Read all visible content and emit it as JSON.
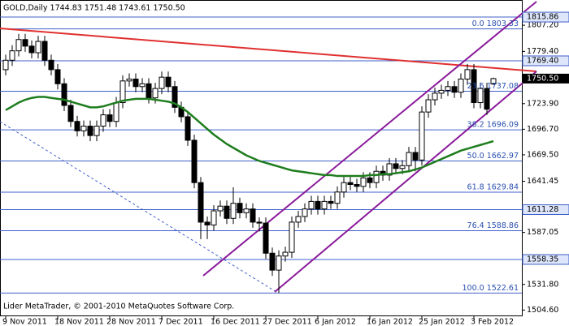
{
  "chart_data": {
    "type": "candlestick",
    "title": "GOLD,Daily  1744.83 1751.48 1743.61 1750.50",
    "footnote": "Lider MetaTrader, © 2001-2010 MetaQuotes Software Corp.",
    "categories": [
      "9 Nov 2011",
      null,
      null,
      null,
      null,
      null,
      null,
      null,
      "18 Nov 2011",
      null,
      null,
      null,
      null,
      null,
      null,
      null,
      "28 Nov 2011",
      null,
      null,
      null,
      null,
      null,
      null,
      null,
      "7 Dec 2011",
      null,
      null,
      null,
      null,
      null,
      null,
      null,
      "16 Dec 2011",
      null,
      null,
      null,
      null,
      null,
      null,
      null,
      "27 Dec 2011",
      null,
      null,
      null,
      null,
      null,
      null,
      null,
      "6 Jan 2012",
      null,
      null,
      null,
      null,
      null,
      null,
      null,
      "16 Jan 2012",
      null,
      null,
      null,
      null,
      null,
      null,
      null,
      "25 Jan 2012",
      null,
      null,
      null,
      null,
      null,
      null,
      null,
      "3 Feb 2012",
      null,
      null,
      null
    ],
    "open": [
      1760,
      1770,
      1780,
      1792,
      1785,
      1778,
      1790,
      1770,
      1760,
      1745,
      1722,
      1705,
      1695,
      1700,
      1690,
      1700,
      1712,
      1705,
      1725,
      1748,
      1750,
      1742,
      1745,
      1730,
      1740,
      1752,
      1742,
      1720,
      1710,
      1685,
      1640,
      1598,
      1595,
      1610,
      1615,
      1602,
      1618,
      1608,
      1612,
      1598,
      1597,
      1565,
      1547,
      1562,
      1566,
      1598,
      1604,
      1612,
      1620,
      1612,
      1620,
      1618,
      1630,
      1640,
      1638,
      1636,
      1645,
      1640,
      1652,
      1648,
      1660,
      1655,
      1658,
      1672,
      1664,
      1715,
      1728,
      1735,
      1738,
      1742,
      1736,
      1750,
      1760,
      1725,
      1740,
      1744.83
    ],
    "high": [
      1776,
      1786,
      1798,
      1798,
      1791,
      1796,
      1796,
      1776,
      1766,
      1751,
      1728,
      1711,
      1706,
      1706,
      1706,
      1718,
      1718,
      1731,
      1754,
      1756,
      1756,
      1751,
      1751,
      1746,
      1758,
      1758,
      1748,
      1726,
      1716,
      1691,
      1646,
      1604,
      1616,
      1621,
      1621,
      1635,
      1624,
      1618,
      1618,
      1603,
      1603,
      1571,
      1568,
      1572,
      1604,
      1610,
      1618,
      1626,
      1626,
      1626,
      1626,
      1636,
      1646,
      1646,
      1644,
      1651,
      1651,
      1658,
      1658,
      1666,
      1666,
      1664,
      1678,
      1678,
      1721,
      1734,
      1741,
      1744,
      1748,
      1748,
      1756,
      1766,
      1766,
      1746,
      1746,
      1751.48
    ],
    "low": [
      1754,
      1764,
      1774,
      1779,
      1772,
      1772,
      1764,
      1754,
      1739,
      1716,
      1699,
      1689,
      1689,
      1684,
      1684,
      1694,
      1699,
      1699,
      1719,
      1742,
      1736,
      1736,
      1724,
      1724,
      1734,
      1736,
      1714,
      1704,
      1679,
      1634,
      1580,
      1580,
      1589,
      1604,
      1596,
      1596,
      1602,
      1602,
      1592,
      1588,
      1559,
      1541,
      1522.61,
      1556,
      1560,
      1592,
      1598,
      1606,
      1606,
      1606,
      1612,
      1612,
      1624,
      1632,
      1630,
      1630,
      1634,
      1634,
      1642,
      1642,
      1649,
      1649,
      1652,
      1652,
      1658,
      1709,
      1722,
      1729,
      1732,
      1730,
      1730,
      1744,
      1719,
      1719,
      1712,
      1743.61
    ],
    "close": [
      1770,
      1780,
      1792,
      1785,
      1778,
      1790,
      1770,
      1760,
      1745,
      1722,
      1705,
      1695,
      1700,
      1690,
      1700,
      1712,
      1705,
      1725,
      1748,
      1750,
      1742,
      1745,
      1730,
      1740,
      1752,
      1742,
      1720,
      1710,
      1685,
      1640,
      1598,
      1595,
      1610,
      1615,
      1602,
      1618,
      1608,
      1612,
      1598,
      1597,
      1565,
      1547,
      1562,
      1566,
      1598,
      1604,
      1612,
      1620,
      1612,
      1620,
      1618,
      1630,
      1640,
      1638,
      1636,
      1645,
      1640,
      1652,
      1648,
      1660,
      1655,
      1658,
      1672,
      1664,
      1715,
      1728,
      1735,
      1738,
      1742,
      1736,
      1750,
      1760,
      1725,
      1740,
      1718,
      1750.5
    ],
    "up_color": "#ffffff",
    "down_color": "#000000",
    "overlays": [
      {
        "color": "#1e7d1e",
        "values": [
          1717,
          1721,
          1725,
          1728,
          1730,
          1731,
          1731,
          1730,
          1729,
          1728,
          1726,
          1724,
          1722,
          1720,
          1720,
          1721,
          1723,
          1725,
          1727,
          1728,
          1729,
          1729,
          1729,
          1728,
          1727,
          1726,
          1724,
          1720,
          1715,
          1709,
          1703,
          1697,
          1691,
          1686,
          1681,
          1677,
          1673,
          1669,
          1666,
          1663,
          1661,
          1659,
          1657,
          1655,
          1653,
          1652,
          1651,
          1650,
          1649,
          1648,
          1648,
          1647,
          1647,
          1647,
          1647,
          1647,
          1648,
          1648,
          1649,
          1649,
          1650,
          1651,
          1652,
          1654,
          1656,
          1659,
          1662,
          1665,
          1668,
          1671,
          1674,
          1676,
          1678,
          1680,
          1682,
          1684
        ]
      }
    ],
    "ylim": [
      1498,
      1834
    ],
    "yticks": [
      {
        "value": 1807.2,
        "label": "1807.20"
      },
      {
        "value": 1779.4,
        "label": "1779.40"
      },
      {
        "value": 1723.9,
        "label": "1723.90"
      },
      {
        "value": 1696.7,
        "label": "1696.70"
      },
      {
        "value": 1669.5,
        "label": "1669.50"
      },
      1641.45,
      1587.05,
      {
        "value": 1531.8,
        "label": "1531.80"
      },
      {
        "value": 1504.6,
        "label": "1504.60"
      }
    ],
    "price_levels": [
      {
        "value": 1815.86,
        "label": "1815.86"
      },
      {
        "value": 1769.4,
        "label": "1769.40"
      },
      {
        "value": 1611.28,
        "label": "1611.28"
      },
      {
        "value": 1558.35,
        "label": "1558.35"
      }
    ],
    "level_color": "#4060c8",
    "current_price": {
      "value": 1750.5,
      "label": "1750.50"
    },
    "fib_levels": [
      {
        "value": 1803.33,
        "label": "0.0 1803.33"
      },
      {
        "value": 1737.08,
        "label": "23.6 1737.08"
      },
      {
        "value": 1696.09,
        "label": "38.2 1696.09"
      },
      {
        "value": 1662.97,
        "label": "50.0 1662.97"
      },
      {
        "value": 1629.84,
        "label": "61.8 1629.84"
      },
      {
        "value": 1588.86,
        "label": "76.4 1588.86"
      },
      {
        "value": 1522.61,
        "label": "100.0 1522.61"
      }
    ],
    "grid": false
  }
}
